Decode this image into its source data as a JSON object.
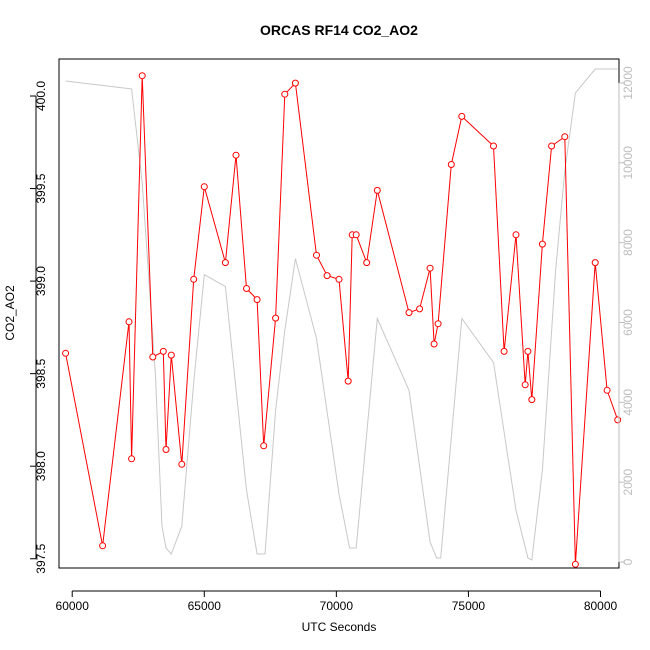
{
  "chart_data": {
    "type": "line",
    "title": "ORCAS RF14 CO2_AO2",
    "xlabel": "UTC Seconds",
    "ylabel": "CO2_AO2",
    "xlim": [
      59500,
      80700
    ],
    "ylim": [
      397.45,
      400.2
    ],
    "y2lim": [
      -150,
      12600
    ],
    "x_ticks": [
      60000,
      65000,
      70000,
      75000,
      80000
    ],
    "y_ticks": [
      397.5,
      398.0,
      398.5,
      399.0,
      399.5,
      400.0
    ],
    "y2_ticks": [
      0,
      2000,
      4000,
      6000,
      8000,
      10000,
      12000
    ],
    "series": [
      {
        "role": "co2",
        "color": "#ff0000",
        "marker": "open-circle",
        "axis": "left",
        "x": [
          59750,
          61150,
          62150,
          62250,
          62650,
          63050,
          63450,
          63550,
          63750,
          64150,
          64600,
          65000,
          65800,
          66200,
          66600,
          67000,
          67250,
          67700,
          68050,
          68450,
          69250,
          69650,
          70100,
          70450,
          70600,
          70750,
          71150,
          71550,
          72750,
          73150,
          73550,
          73700,
          73850,
          74350,
          74750,
          75950,
          76350,
          76800,
          77150,
          77250,
          77400,
          77800,
          78150,
          78650,
          79050,
          79800,
          80250,
          80650
        ],
        "values": [
          398.61,
          397.57,
          398.78,
          398.04,
          400.11,
          398.59,
          398.62,
          398.09,
          398.6,
          398.01,
          399.01,
          399.51,
          399.1,
          399.68,
          398.96,
          398.9,
          398.11,
          398.8,
          400.01,
          400.07,
          399.14,
          399.03,
          399.01,
          398.46,
          399.25,
          399.25,
          399.1,
          399.49,
          398.83,
          398.85,
          399.07,
          398.66,
          398.77,
          399.63,
          399.89,
          399.73,
          398.62,
          399.25,
          398.44,
          398.62,
          398.36,
          399.2,
          399.73,
          399.78,
          397.47,
          399.1,
          398.41,
          398.25
        ]
      },
      {
        "role": "altitude",
        "color": "#c8c8c8",
        "axis": "right",
        "x": [
          59750,
          62250,
          62650,
          63150,
          63400,
          63550,
          63750,
          64150,
          64600,
          65000,
          65800,
          66600,
          67000,
          67300,
          67700,
          68050,
          68450,
          69250,
          70100,
          70500,
          70750,
          71550,
          72750,
          73550,
          73800,
          73950,
          74750,
          75950,
          76800,
          77250,
          77400,
          77800,
          78300,
          78650,
          79050,
          79800,
          80250,
          80650
        ],
        "values": [
          12050,
          11850,
          9500,
          4700,
          900,
          350,
          200,
          900,
          4500,
          7200,
          6900,
          1800,
          200,
          200,
          3800,
          5800,
          7600,
          5600,
          1700,
          350,
          350,
          6100,
          4300,
          500,
          100,
          100,
          6100,
          5000,
          1300,
          100,
          50,
          2300,
          7300,
          9800,
          11750,
          12350,
          12350,
          12350
        ]
      }
    ]
  }
}
